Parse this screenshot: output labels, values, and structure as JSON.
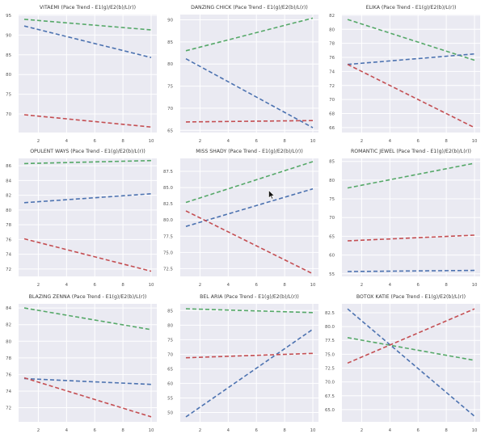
{
  "chart_data": [
    {
      "type": "line",
      "title": "VITAEMI (Pace Trend - E1(g)/E2(b)/L(r))",
      "xlabel": "",
      "ylabel": "",
      "x": [
        1,
        10
      ],
      "xticks": [
        2,
        4,
        6,
        8,
        10
      ],
      "xlim": [
        0.6,
        10.4
      ],
      "ylim": [
        65.3,
        95.2
      ],
      "yticks": [
        70,
        75,
        80,
        85,
        90,
        95
      ],
      "grid": true,
      "series": [
        {
          "name": "E1",
          "color": "#55a868",
          "values": [
            94.0,
            91.3
          ]
        },
        {
          "name": "E2",
          "color": "#4c72b0",
          "values": [
            92.3,
            84.3
          ]
        },
        {
          "name": "L",
          "color": "#c44e52",
          "values": [
            69.8,
            66.7
          ]
        }
      ]
    },
    {
      "type": "line",
      "title": "DANZING CHICK (Pace Trend - E1(g)/E2(b)/L(r))",
      "xlabel": "",
      "ylabel": "",
      "x": [
        1,
        10
      ],
      "xticks": [
        2,
        4,
        6,
        8,
        10
      ],
      "xlim": [
        0.6,
        10.4
      ],
      "ylim": [
        64.5,
        91.2
      ],
      "yticks": [
        65,
        70,
        75,
        80,
        85,
        90
      ],
      "grid": true,
      "series": [
        {
          "name": "E1",
          "color": "#55a868",
          "values": [
            83.0,
            90.4
          ]
        },
        {
          "name": "E2",
          "color": "#4c72b0",
          "values": [
            81.2,
            65.6
          ]
        },
        {
          "name": "L",
          "color": "#c44e52",
          "values": [
            66.9,
            67.2
          ]
        }
      ]
    },
    {
      "type": "line",
      "title": "ELIKA (Pace Trend - E1(g)/E2(b)/L(r))",
      "xlabel": "",
      "ylabel": "",
      "x": [
        1,
        10
      ],
      "xticks": [
        2,
        4,
        6,
        8,
        10
      ],
      "xlim": [
        0.6,
        10.4
      ],
      "ylim": [
        65.3,
        82.1
      ],
      "yticks": [
        66,
        68,
        70,
        72,
        74,
        76,
        78,
        80,
        82
      ],
      "grid": true,
      "series": [
        {
          "name": "E1",
          "color": "#55a868",
          "values": [
            81.4,
            75.6
          ]
        },
        {
          "name": "E2",
          "color": "#4c72b0",
          "values": [
            75.0,
            76.5
          ]
        },
        {
          "name": "L",
          "color": "#c44e52",
          "values": [
            75.0,
            66.0
          ]
        }
      ]
    },
    {
      "type": "line",
      "title": "OPULENT WAYS (Pace Trend - E1(g)/E2(b)/L(r))",
      "xlabel": "",
      "ylabel": "",
      "x": [
        1,
        10
      ],
      "xticks": [
        2,
        4,
        6,
        8,
        10
      ],
      "xlim": [
        0.6,
        10.4
      ],
      "ylim": [
        71.0,
        87.0
      ],
      "yticks": [
        72,
        74,
        76,
        78,
        80,
        82,
        84,
        86
      ],
      "grid": true,
      "series": [
        {
          "name": "E1",
          "color": "#55a868",
          "values": [
            86.3,
            86.7
          ]
        },
        {
          "name": "E2",
          "color": "#4c72b0",
          "values": [
            81.0,
            82.2
          ]
        },
        {
          "name": "L",
          "color": "#c44e52",
          "values": [
            76.1,
            71.7
          ]
        }
      ]
    },
    {
      "type": "line",
      "title": "MISS SHADY (Pace Trend - E1(g)/E2(b)/L(r))",
      "xlabel": "",
      "ylabel": "",
      "x": [
        1,
        10
      ],
      "xticks": [
        2,
        4,
        6,
        8,
        10
      ],
      "xlim": [
        0.6,
        10.4
      ],
      "ylim": [
        71.3,
        89.5
      ],
      "yticks": [
        72.5,
        75.0,
        77.5,
        80.0,
        82.5,
        85.0,
        87.5
      ],
      "ytick_labels": [
        "72.5",
        "75.0",
        "77.5",
        "80.0",
        "82.5",
        "85.0",
        "87.5"
      ],
      "grid": true,
      "series": [
        {
          "name": "E1",
          "color": "#55a868",
          "values": [
            82.7,
            89.0
          ]
        },
        {
          "name": "E2",
          "color": "#4c72b0",
          "values": [
            79.0,
            84.8
          ]
        },
        {
          "name": "L",
          "color": "#c44e52",
          "values": [
            81.4,
            71.7
          ]
        }
      ]
    },
    {
      "type": "line",
      "title": "ROMANTIC JEWEL (Pace Trend - E1(g)/E2(b)/L(r))",
      "xlabel": "",
      "ylabel": "",
      "x": [
        1,
        10
      ],
      "xticks": [
        2,
        4,
        6,
        8,
        10
      ],
      "xlim": [
        0.6,
        10.4
      ],
      "ylim": [
        54.3,
        85.8
      ],
      "yticks": [
        55,
        60,
        65,
        70,
        75,
        80,
        85
      ],
      "grid": true,
      "series": [
        {
          "name": "E1",
          "color": "#55a868",
          "values": [
            77.9,
            84.5
          ]
        },
        {
          "name": "E2",
          "color": "#4c72b0",
          "values": [
            55.6,
            55.9
          ]
        },
        {
          "name": "L",
          "color": "#c44e52",
          "values": [
            63.8,
            65.3
          ]
        }
      ]
    },
    {
      "type": "line",
      "title": "BLAZING ZENNA (Pace Trend - E1(g)/E2(b)/L(r))",
      "xlabel": "",
      "ylabel": "",
      "x": [
        1,
        10
      ],
      "xticks": [
        2,
        4,
        6,
        8,
        10
      ],
      "xlim": [
        0.6,
        10.4
      ],
      "ylim": [
        70.3,
        84.5
      ],
      "yticks": [
        72,
        74,
        76,
        78,
        80,
        82,
        84
      ],
      "grid": true,
      "series": [
        {
          "name": "E1",
          "color": "#55a868",
          "values": [
            84.0,
            81.4
          ]
        },
        {
          "name": "E2",
          "color": "#4c72b0",
          "values": [
            75.5,
            74.8
          ]
        },
        {
          "name": "L",
          "color": "#c44e52",
          "values": [
            75.6,
            70.9
          ]
        }
      ]
    },
    {
      "type": "line",
      "title": "BEL ARIA (Pace Trend - E1(g)/E2(b)/L(r))",
      "xlabel": "",
      "ylabel": "",
      "x": [
        1,
        10
      ],
      "xticks": [
        2,
        4,
        6,
        8,
        10
      ],
      "xlim": [
        0.6,
        10.4
      ],
      "ylim": [
        46.8,
        87.3
      ],
      "yticks": [
        50,
        55,
        60,
        65,
        70,
        75,
        80,
        85
      ],
      "grid": true,
      "series": [
        {
          "name": "E1",
          "color": "#55a868",
          "values": [
            85.6,
            84.3
          ]
        },
        {
          "name": "E2",
          "color": "#4c72b0",
          "values": [
            48.5,
            78.6
          ]
        },
        {
          "name": "L",
          "color": "#c44e52",
          "values": [
            68.8,
            70.3
          ]
        }
      ]
    },
    {
      "type": "line",
      "title": "BOTOX KATIE (Pace Trend - E1(g)/E2(b)/L(r))",
      "xlabel": "",
      "ylabel": "",
      "x": [
        1,
        10
      ],
      "xticks": [
        2,
        4,
        6,
        8,
        10
      ],
      "xlim": [
        0.6,
        10.4
      ],
      "ylim": [
        62.8,
        84.1
      ],
      "yticks": [
        65.0,
        67.5,
        70.0,
        72.5,
        75.0,
        77.5,
        80.0,
        82.5
      ],
      "ytick_labels": [
        "65.0",
        "67.5",
        "70.0",
        "72.5",
        "75.0",
        "77.5",
        "80.0",
        "82.5"
      ],
      "grid": true,
      "series": [
        {
          "name": "E1",
          "color": "#55a868",
          "values": [
            78.0,
            73.9
          ]
        },
        {
          "name": "E2",
          "color": "#4c72b0",
          "values": [
            83.2,
            63.8
          ]
        },
        {
          "name": "L",
          "color": "#c44e52",
          "values": [
            73.4,
            83.2
          ]
        }
      ]
    }
  ],
  "cursor": {
    "icon": "mouse-pointer-icon"
  }
}
